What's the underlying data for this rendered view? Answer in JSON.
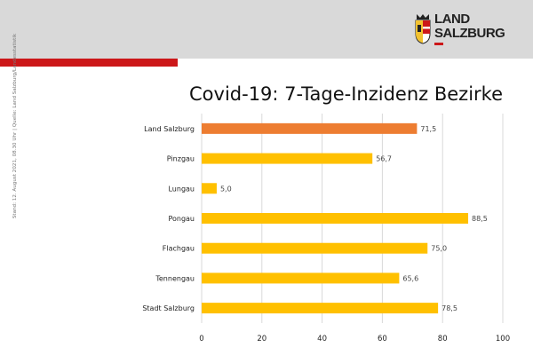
{
  "header": {
    "logo_line1": "LAND",
    "logo_line2": "SALZBURG",
    "accent_color": "#cc1719",
    "background_color": "#d9d9d9",
    "logo_icon": "salzburg-crest-icon"
  },
  "side_note": "Stand: 12. August 2021, 08.30 Uhr | Quelle: Land Salzburg/Landesstatistik",
  "chart_data": {
    "type": "bar",
    "orientation": "horizontal",
    "title": "Covid-19: 7-Tage-Inzidenz Bezirke",
    "categories": [
      "Land Salzburg",
      "Pinzgau",
      "Lungau",
      "Pongau",
      "Flachgau",
      "Tennengau",
      "Stadt Salzburg"
    ],
    "values": [
      71.5,
      56.7,
      5.0,
      88.5,
      75.0,
      65.6,
      78.5
    ],
    "value_labels": [
      "71,5",
      "56,7",
      "5,0",
      "88,5",
      "75,0",
      "65,6",
      "78,5"
    ],
    "bar_colors": [
      "#ed7d31",
      "#ffc000",
      "#ffc000",
      "#ffc000",
      "#ffc000",
      "#ffc000",
      "#ffc000"
    ],
    "xlim": [
      0,
      100
    ],
    "xticks": [
      0,
      20,
      40,
      60,
      80,
      100
    ],
    "xlabel": "",
    "ylabel": "",
    "grid": "vertical",
    "legend": "none"
  }
}
